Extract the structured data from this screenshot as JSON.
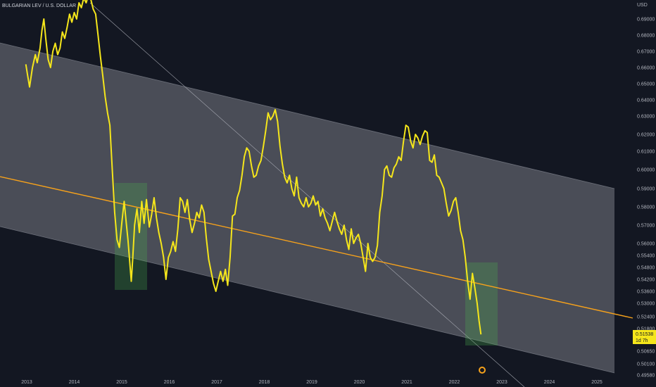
{
  "chart_data": {
    "type": "line",
    "title": "BULGARIAN LEV / U.S. DOLLAR",
    "currency": "USD",
    "x_ticks": [
      "2013",
      "2014",
      "2015",
      "2016",
      "2017",
      "2018",
      "2019",
      "2020",
      "2021",
      "2022",
      "2023",
      "2024",
      "2025"
    ],
    "y_ticks": [
      "0.69000",
      "0.68000",
      "0.67000",
      "0.66000",
      "0.65000",
      "0.64000",
      "0.63000",
      "0.62000",
      "0.61000",
      "0.60000",
      "0.59000",
      "0.58000",
      "0.57000",
      "0.56000",
      "0.55400",
      "0.54800",
      "0.54200",
      "0.53600",
      "0.53000",
      "0.52400",
      "0.51800",
      "0.50650",
      "0.50100",
      "0.49580"
    ],
    "xlim": [
      2012.75,
      2025.6
    ],
    "last_price": "0.51538",
    "countdown": "1d 7h",
    "colors": {
      "background": "#131722",
      "price_line": "#f5e61b",
      "channel_fill": "#9598a1",
      "midline": "#f7a21b",
      "trendline": "#b2b5be",
      "highlight": "#4caf50"
    },
    "series": [
      {
        "values": [
          [
            2012.98,
            0.662
          ],
          [
            2013.02,
            0.655
          ],
          [
            2013.06,
            0.648
          ],
          [
            2013.12,
            0.66
          ],
          [
            2013.18,
            0.668
          ],
          [
            2013.22,
            0.663
          ],
          [
            2013.28,
            0.672
          ],
          [
            2013.32,
            0.683
          ],
          [
            2013.36,
            0.69
          ],
          [
            2013.4,
            0.678
          ],
          [
            2013.45,
            0.665
          ],
          [
            2013.5,
            0.66
          ],
          [
            2013.55,
            0.67
          ],
          [
            2013.6,
            0.675
          ],
          [
            2013.65,
            0.668
          ],
          [
            2013.7,
            0.672
          ],
          [
            2013.75,
            0.682
          ],
          [
            2013.8,
            0.678
          ],
          [
            2013.85,
            0.685
          ],
          [
            2013.9,
            0.693
          ],
          [
            2013.95,
            0.688
          ],
          [
            2014.0,
            0.694
          ],
          [
            2014.05,
            0.69
          ],
          [
            2014.1,
            0.7
          ],
          [
            2014.15,
            0.697
          ],
          [
            2014.2,
            0.703
          ],
          [
            2014.25,
            0.7
          ],
          [
            2014.3,
            0.705
          ],
          [
            2014.35,
            0.702
          ],
          [
            2014.4,
            0.696
          ],
          [
            2014.45,
            0.693
          ],
          [
            2014.5,
            0.68
          ],
          [
            2014.55,
            0.667
          ],
          [
            2014.6,
            0.655
          ],
          [
            2014.65,
            0.642
          ],
          [
            2014.7,
            0.632
          ],
          [
            2014.75,
            0.625
          ],
          [
            2014.8,
            0.6
          ],
          [
            2014.85,
            0.577
          ],
          [
            2014.9,
            0.562
          ],
          [
            2014.95,
            0.558
          ],
          [
            2015.0,
            0.571
          ],
          [
            2015.05,
            0.583
          ],
          [
            2015.1,
            0.57
          ],
          [
            2015.13,
            0.562
          ],
          [
            2015.17,
            0.55
          ],
          [
            2015.2,
            0.541
          ],
          [
            2015.23,
            0.552
          ],
          [
            2015.27,
            0.57
          ],
          [
            2015.32,
            0.579
          ],
          [
            2015.37,
            0.566
          ],
          [
            2015.42,
            0.583
          ],
          [
            2015.47,
            0.571
          ],
          [
            2015.52,
            0.584
          ],
          [
            2015.58,
            0.569
          ],
          [
            2015.63,
            0.576
          ],
          [
            2015.68,
            0.585
          ],
          [
            2015.73,
            0.574
          ],
          [
            2015.78,
            0.566
          ],
          [
            2015.83,
            0.56
          ],
          [
            2015.88,
            0.553
          ],
          [
            2015.93,
            0.542
          ],
          [
            2015.98,
            0.553
          ],
          [
            2016.03,
            0.556
          ],
          [
            2016.08,
            0.561
          ],
          [
            2016.13,
            0.556
          ],
          [
            2016.18,
            0.568
          ],
          [
            2016.23,
            0.585
          ],
          [
            2016.28,
            0.583
          ],
          [
            2016.33,
            0.577
          ],
          [
            2016.38,
            0.584
          ],
          [
            2016.43,
            0.573
          ],
          [
            2016.48,
            0.566
          ],
          [
            2016.53,
            0.571
          ],
          [
            2016.58,
            0.577
          ],
          [
            2016.63,
            0.574
          ],
          [
            2016.68,
            0.581
          ],
          [
            2016.73,
            0.577
          ],
          [
            2016.78,
            0.563
          ],
          [
            2016.83,
            0.552
          ],
          [
            2016.88,
            0.546
          ],
          [
            2016.93,
            0.54
          ],
          [
            2016.98,
            0.536
          ],
          [
            2017.03,
            0.541
          ],
          [
            2017.08,
            0.546
          ],
          [
            2017.13,
            0.541
          ],
          [
            2017.18,
            0.547
          ],
          [
            2017.23,
            0.539
          ],
          [
            2017.28,
            0.553
          ],
          [
            2017.33,
            0.575
          ],
          [
            2017.38,
            0.576
          ],
          [
            2017.43,
            0.585
          ],
          [
            2017.48,
            0.589
          ],
          [
            2017.53,
            0.597
          ],
          [
            2017.58,
            0.607
          ],
          [
            2017.63,
            0.612
          ],
          [
            2017.68,
            0.61
          ],
          [
            2017.73,
            0.602
          ],
          [
            2017.78,
            0.596
          ],
          [
            2017.83,
            0.597
          ],
          [
            2017.88,
            0.602
          ],
          [
            2017.93,
            0.605
          ],
          [
            2017.98,
            0.613
          ],
          [
            2018.03,
            0.622
          ],
          [
            2018.08,
            0.632
          ],
          [
            2018.13,
            0.628
          ],
          [
            2018.18,
            0.63
          ],
          [
            2018.23,
            0.634
          ],
          [
            2018.28,
            0.627
          ],
          [
            2018.33,
            0.613
          ],
          [
            2018.38,
            0.603
          ],
          [
            2018.43,
            0.596
          ],
          [
            2018.48,
            0.593
          ],
          [
            2018.53,
            0.597
          ],
          [
            2018.58,
            0.59
          ],
          [
            2018.63,
            0.586
          ],
          [
            2018.68,
            0.596
          ],
          [
            2018.73,
            0.585
          ],
          [
            2018.78,
            0.582
          ],
          [
            2018.83,
            0.58
          ],
          [
            2018.88,
            0.585
          ],
          [
            2018.93,
            0.58
          ],
          [
            2018.98,
            0.582
          ],
          [
            2019.03,
            0.586
          ],
          [
            2019.08,
            0.581
          ],
          [
            2019.13,
            0.583
          ],
          [
            2019.18,
            0.575
          ],
          [
            2019.23,
            0.579
          ],
          [
            2019.28,
            0.574
          ],
          [
            2019.33,
            0.571
          ],
          [
            2019.38,
            0.567
          ],
          [
            2019.43,
            0.572
          ],
          [
            2019.48,
            0.577
          ],
          [
            2019.53,
            0.572
          ],
          [
            2019.58,
            0.568
          ],
          [
            2019.63,
            0.565
          ],
          [
            2019.68,
            0.57
          ],
          [
            2019.73,
            0.562
          ],
          [
            2019.78,
            0.557
          ],
          [
            2019.83,
            0.568
          ],
          [
            2019.88,
            0.56
          ],
          [
            2019.93,
            0.563
          ],
          [
            2019.98,
            0.565
          ],
          [
            2020.03,
            0.56
          ],
          [
            2020.08,
            0.553
          ],
          [
            2020.13,
            0.546
          ],
          [
            2020.18,
            0.56
          ],
          [
            2020.23,
            0.553
          ],
          [
            2020.28,
            0.551
          ],
          [
            2020.33,
            0.553
          ],
          [
            2020.38,
            0.559
          ],
          [
            2020.43,
            0.577
          ],
          [
            2020.48,
            0.586
          ],
          [
            2020.53,
            0.6
          ],
          [
            2020.58,
            0.602
          ],
          [
            2020.63,
            0.597
          ],
          [
            2020.68,
            0.596
          ],
          [
            2020.73,
            0.601
          ],
          [
            2020.78,
            0.603
          ],
          [
            2020.83,
            0.607
          ],
          [
            2020.88,
            0.605
          ],
          [
            2020.93,
            0.616
          ],
          [
            2020.98,
            0.625
          ],
          [
            2021.03,
            0.624
          ],
          [
            2021.08,
            0.616
          ],
          [
            2021.13,
            0.612
          ],
          [
            2021.18,
            0.62
          ],
          [
            2021.23,
            0.618
          ],
          [
            2021.28,
            0.614
          ],
          [
            2021.33,
            0.619
          ],
          [
            2021.38,
            0.622
          ],
          [
            2021.43,
            0.621
          ],
          [
            2021.48,
            0.605
          ],
          [
            2021.53,
            0.604
          ],
          [
            2021.58,
            0.608
          ],
          [
            2021.63,
            0.597
          ],
          [
            2021.68,
            0.596
          ],
          [
            2021.73,
            0.593
          ],
          [
            2021.78,
            0.59
          ],
          [
            2021.83,
            0.582
          ],
          [
            2021.88,
            0.575
          ],
          [
            2021.93,
            0.578
          ],
          [
            2021.98,
            0.583
          ],
          [
            2022.03,
            0.585
          ],
          [
            2022.08,
            0.577
          ],
          [
            2022.13,
            0.567
          ],
          [
            2022.18,
            0.562
          ],
          [
            2022.23,
            0.553
          ],
          [
            2022.28,
            0.541
          ],
          [
            2022.33,
            0.532
          ],
          [
            2022.38,
            0.545
          ],
          [
            2022.43,
            0.538
          ],
          [
            2022.48,
            0.53
          ],
          [
            2022.52,
            0.522
          ],
          [
            2022.56,
            0.515
          ]
        ]
      }
    ]
  }
}
